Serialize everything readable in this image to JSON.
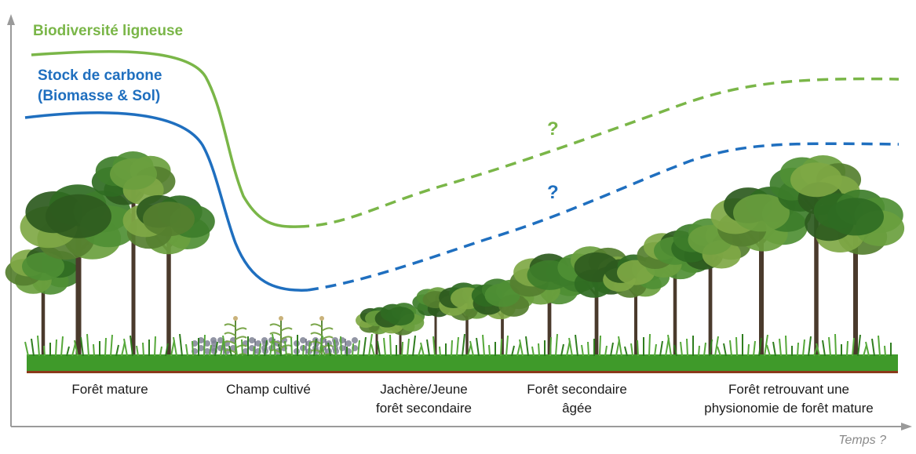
{
  "legend": {
    "biodiversity_label": "Biodiversité ligneuse",
    "carbon_label": "Stock de carbone (Biomasse & Sol)"
  },
  "colors": {
    "biodiversity": "#7ab648",
    "carbon": "#1f6fbf",
    "axis": "#9a9a9a",
    "ground": "#8b3a1a",
    "grass": "#3f9a2a"
  },
  "uncertainty": {
    "biodiversity_mark": "?",
    "carbon_mark": "?"
  },
  "stages": [
    {
      "label": "Forêt mature"
    },
    {
      "label": "Champ cultivé"
    },
    {
      "label": "Jachère/Jeune\nforêt secondaire"
    },
    {
      "label": "Forêt secondaire\nâgée"
    },
    {
      "label": "Forêt retrouvant une\nphysionomie de forêt mature"
    }
  ],
  "axis": {
    "time_label": "Temps ?"
  }
}
